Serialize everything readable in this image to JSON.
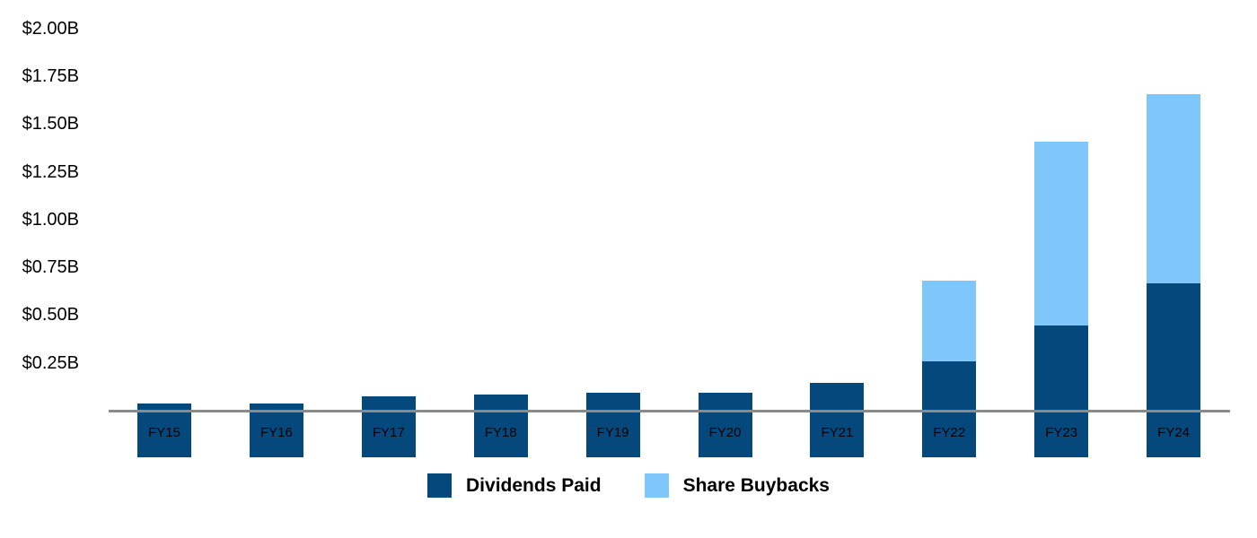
{
  "chart_data": {
    "type": "bar",
    "stacked": true,
    "title": "",
    "xlabel": "",
    "ylabel": "",
    "grid": false,
    "legend_position": "bottom",
    "background_color": "#ffffff",
    "axis_line_color": "#8a8a8a",
    "text_color": "#000000",
    "ylim": [
      0,
      2.0
    ],
    "yticks": [
      {
        "value": 0.25,
        "label": "$0.25B"
      },
      {
        "value": 0.5,
        "label": "$0.50B"
      },
      {
        "value": 0.75,
        "label": "$0.75B"
      },
      {
        "value": 1.0,
        "label": "$1.00B"
      },
      {
        "value": 1.25,
        "label": "$1.25B"
      },
      {
        "value": 1.5,
        "label": "$1.50B"
      },
      {
        "value": 1.75,
        "label": "$1.75B"
      },
      {
        "value": 2.0,
        "label": "$2.00B"
      }
    ],
    "categories": [
      "FY15",
      "FY16",
      "FY17",
      "FY18",
      "FY19",
      "FY20",
      "FY21",
      "FY22",
      "FY23",
      "FY24"
    ],
    "series": [
      {
        "name": "Dividends Paid",
        "color": "#05497c",
        "values": [
          0.28,
          0.28,
          0.32,
          0.33,
          0.34,
          0.34,
          0.39,
          0.5,
          0.69,
          0.91
        ]
      },
      {
        "name": "Share Buybacks",
        "color": "#7fc6fa",
        "values": [
          0,
          0,
          0,
          0,
          0,
          0,
          0,
          0.42,
          0.96,
          0.99
        ]
      }
    ]
  }
}
